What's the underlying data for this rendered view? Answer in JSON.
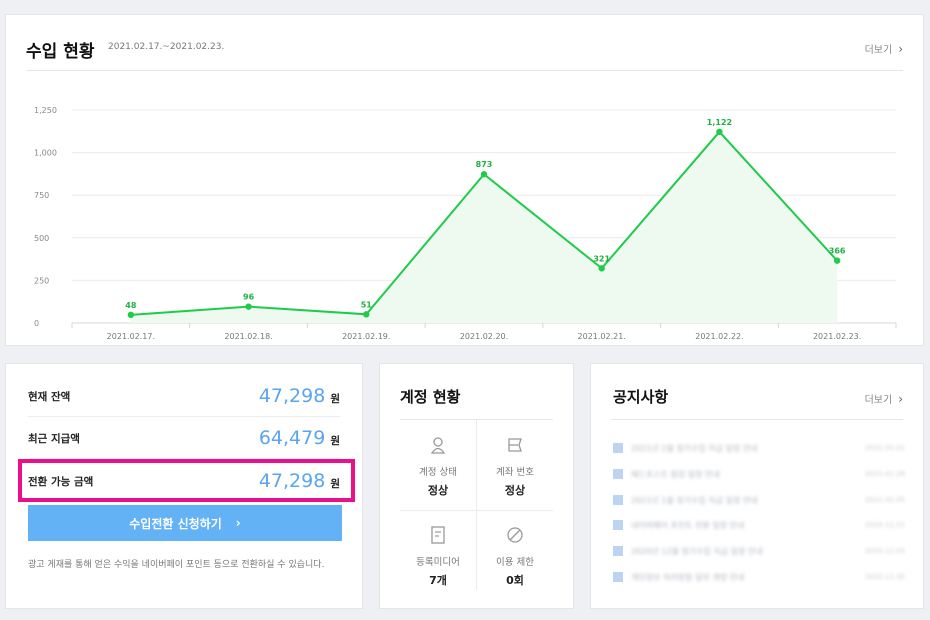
{
  "income": {
    "title": "수입 현황",
    "range": "2021.02.17.~2021.02.23.",
    "more_label": "더보기",
    "more_icon": "chevron-right-icon"
  },
  "chart_data": {
    "type": "area",
    "categories": [
      "2021.02.17.",
      "2021.02.18.",
      "2021.02.19.",
      "2021.02.20.",
      "2021.02.21.",
      "2021.02.22.",
      "2021.02.23."
    ],
    "values": [
      48,
      96,
      51,
      873,
      321,
      1122,
      366
    ],
    "value_labels": [
      "48",
      "96",
      "51",
      "873",
      "321",
      "1,122",
      "366"
    ],
    "yticks": [
      0,
      250,
      500,
      750,
      1000,
      1250
    ],
    "ytick_labels": [
      "0",
      "250",
      "500",
      "750",
      "1,000",
      "1,250"
    ],
    "ylim": [
      0,
      1250
    ],
    "grid": true,
    "colors": {
      "line": "#1fcc4a",
      "fill": "#eef9ef",
      "label": "#1fb143"
    }
  },
  "balance": {
    "rows": [
      {
        "label": "현재 잔액",
        "amount": "47,298",
        "unit": "원"
      },
      {
        "label": "최근 지급액",
        "amount": "64,479",
        "unit": "원"
      },
      {
        "label": "전환 가능 금액",
        "amount": "47,298",
        "unit": "원"
      }
    ],
    "button_label": "수입전환 신청하기",
    "button_arrow": "›",
    "note": "광고 게재를 통해 얻은 수익을 네이버페이 포인트 등으로 전환하실 수 있습니다.",
    "highlight_color": "#ec0f8c",
    "amount_color": "#5aa5f0"
  },
  "account": {
    "title": "계정 현황",
    "cells": [
      {
        "icon": "user-icon",
        "label": "계정 상태",
        "value": "정상"
      },
      {
        "icon": "account-number-icon",
        "label": "계좌 번호",
        "value": "정상"
      },
      {
        "icon": "document-icon",
        "label": "등록미디어",
        "value": "7개"
      },
      {
        "icon": "ban-icon",
        "label": "이용 제한",
        "value": "0회"
      }
    ]
  },
  "notices": {
    "title": "공지사항",
    "more_label": "더보기",
    "items": [
      {
        "text": "2021년 2월 정기수입 지급 일정 안내",
        "date": "2021.02.01"
      },
      {
        "text": "애드포스트 점검 일정 안내",
        "date": "2021.01.29"
      },
      {
        "text": "2021년 1월 정기수입 지급 일정 안내",
        "date": "2021.01.05"
      },
      {
        "text": "네이버페이 포인트 전환 일정 안내",
        "date": "2020.12.21"
      },
      {
        "text": "2020년 12월 정기수입 지급 일정 안내",
        "date": "2020.12.03"
      },
      {
        "text": "개인정보 처리방침 일부 개정 안내",
        "date": "2020.11.30"
      }
    ]
  }
}
